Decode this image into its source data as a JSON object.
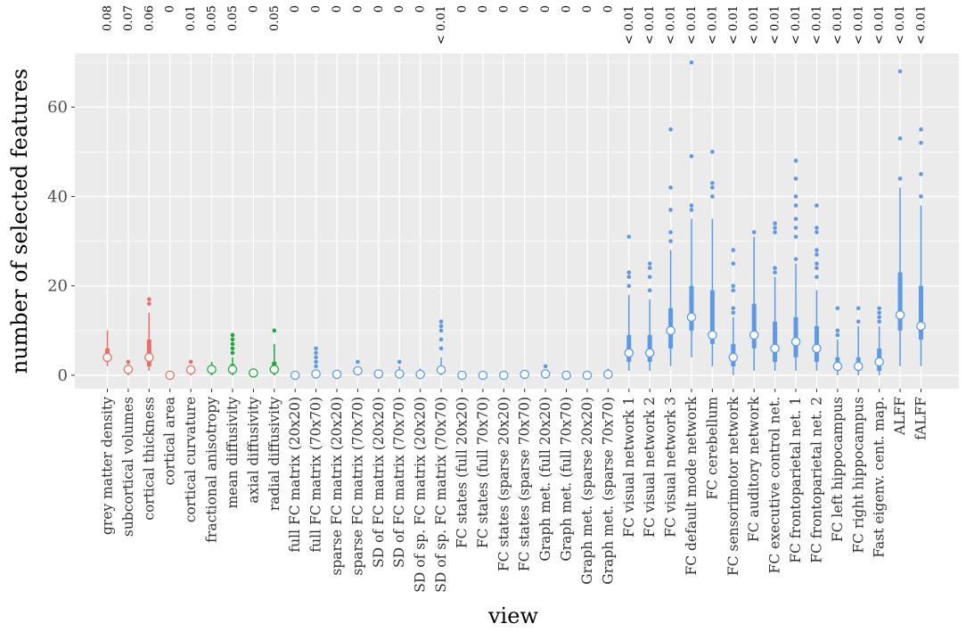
{
  "chart_data": {
    "type": "boxplot",
    "xlabel": "view",
    "ylabel": "number of selected features",
    "ylim": [
      -3,
      72
    ],
    "yticks": [
      0,
      20,
      40,
      60
    ],
    "grid": true,
    "legend": "none",
    "colors": {
      "structural": "#E8706A",
      "diffusion": "#1BAA3A",
      "functional": "#5C9AE8",
      "panel_bg": "#EBEBEB",
      "grid": "#FFFFFF"
    },
    "categories": [
      {
        "label": "grey matter density",
        "p": "0.08",
        "group": "structural",
        "median": 4,
        "q1": 3,
        "q3": 6,
        "wlo": 2,
        "whi": 10,
        "out": []
      },
      {
        "label": "subcortical volumes",
        "p": "0.07",
        "group": "structural",
        "median": 1.3,
        "q1": 1,
        "q3": 2,
        "wlo": 0,
        "whi": 2.5,
        "out": [
          3
        ]
      },
      {
        "label": "cortical thickness",
        "p": "0.06",
        "group": "structural",
        "median": 4,
        "q1": 2,
        "q3": 8,
        "wlo": 1,
        "whi": 14,
        "out": [
          16,
          17
        ]
      },
      {
        "label": "cortical area",
        "p": "0",
        "group": "structural",
        "median": 0,
        "q1": 0,
        "q3": 0,
        "wlo": 0,
        "whi": 0,
        "out": []
      },
      {
        "label": "cortical curvature",
        "p": "0.01",
        "group": "structural",
        "median": 1.2,
        "q1": 1,
        "q3": 2,
        "wlo": 0,
        "whi": 2,
        "out": [
          3
        ]
      },
      {
        "label": "fractional anisotropy",
        "p": "0.05",
        "group": "diffusion",
        "median": 1.3,
        "q1": 1,
        "q3": 2,
        "wlo": 0,
        "whi": 3,
        "out": []
      },
      {
        "label": "mean diffusivity",
        "p": "0.05",
        "group": "diffusion",
        "median": 1.3,
        "q1": 1,
        "q3": 2.5,
        "wlo": 0,
        "whi": 4,
        "out": [
          5,
          6,
          7,
          8,
          9
        ]
      },
      {
        "label": "axial diffusivity",
        "p": "0",
        "group": "diffusion",
        "median": 0.5,
        "q1": 0,
        "q3": 1,
        "wlo": 0,
        "whi": 1.5,
        "out": []
      },
      {
        "label": "radial diffusivity",
        "p": "0.05",
        "group": "diffusion",
        "median": 1.3,
        "q1": 1,
        "q3": 3,
        "wlo": 0,
        "whi": 7,
        "out": [
          10
        ]
      },
      {
        "label": "full FC matrix (20x20)",
        "p": "0",
        "group": "functional",
        "median": 0,
        "q1": 0,
        "q3": 0,
        "wlo": 0,
        "whi": 0,
        "out": []
      },
      {
        "label": "full FC matrix (70x70)",
        "p": "0",
        "group": "functional",
        "median": 0.3,
        "q1": 0,
        "q3": 1,
        "wlo": 0,
        "whi": 1,
        "out": [
          2,
          3,
          4,
          5,
          6
        ]
      },
      {
        "label": "sparse FC matrix (20x20)",
        "p": "0",
        "group": "functional",
        "median": 0.2,
        "q1": 0,
        "q3": 0.5,
        "wlo": 0,
        "whi": 1,
        "out": []
      },
      {
        "label": "sparse FC matrix (70x70)",
        "p": "0",
        "group": "functional",
        "median": 1,
        "q1": 0.5,
        "q3": 1.5,
        "wlo": 0,
        "whi": 2,
        "out": [
          3
        ]
      },
      {
        "label": "SD of FC matrix (20x20)",
        "p": "0",
        "group": "functional",
        "median": 0.3,
        "q1": 0,
        "q3": 0.5,
        "wlo": 0,
        "whi": 1,
        "out": []
      },
      {
        "label": "SD of FC matrix (70x70)",
        "p": "0",
        "group": "functional",
        "median": 0.3,
        "q1": 0,
        "q3": 1,
        "wlo": 0,
        "whi": 2,
        "out": [
          3
        ]
      },
      {
        "label": "SD of sp. FC matrix (20x20)",
        "p": "0",
        "group": "functional",
        "median": 0.2,
        "q1": 0,
        "q3": 0.5,
        "wlo": 0,
        "whi": 1.5,
        "out": []
      },
      {
        "label": "SD of sp. FC matrix (70x70)",
        "p": "< 0.01",
        "group": "functional",
        "median": 1.2,
        "q1": 0.5,
        "q3": 2,
        "wlo": 0,
        "whi": 4,
        "out": [
          6,
          8,
          10,
          11,
          12
        ]
      },
      {
        "label": "FC states (full 20x20)",
        "p": "0",
        "group": "functional",
        "median": 0,
        "q1": 0,
        "q3": 0,
        "wlo": 0,
        "whi": 0,
        "out": []
      },
      {
        "label": "FC states (full 70x70)",
        "p": "0",
        "group": "functional",
        "median": 0,
        "q1": 0,
        "q3": 0,
        "wlo": 0,
        "whi": 0,
        "out": []
      },
      {
        "label": "FC states (sparse 20x20)",
        "p": "0",
        "group": "functional",
        "median": 0,
        "q1": 0,
        "q3": 0,
        "wlo": 0,
        "whi": 0,
        "out": []
      },
      {
        "label": "FC states (sparse 70x70)",
        "p": "0",
        "group": "functional",
        "median": 0.2,
        "q1": 0,
        "q3": 0.5,
        "wlo": 0,
        "whi": 1,
        "out": []
      },
      {
        "label": "Graph met. (full 20x20)",
        "p": "0",
        "group": "functional",
        "median": 0.3,
        "q1": 0,
        "q3": 0.5,
        "wlo": 0,
        "whi": 1,
        "out": [
          2
        ]
      },
      {
        "label": "Graph met. (full 70x70)",
        "p": "0",
        "group": "functional",
        "median": 0,
        "q1": 0,
        "q3": 0,
        "wlo": 0,
        "whi": 0,
        "out": []
      },
      {
        "label": "Graph met. (sparse 20x20)",
        "p": "0",
        "group": "functional",
        "median": 0,
        "q1": 0,
        "q3": 0,
        "wlo": 0,
        "whi": 0,
        "out": []
      },
      {
        "label": "Graph met. (sparse 70x70)",
        "p": "0",
        "group": "functional",
        "median": 0.2,
        "q1": 0,
        "q3": 0.5,
        "wlo": 0,
        "whi": 1.5,
        "out": []
      },
      {
        "label": "FC visual network 1",
        "p": "< 0.01",
        "group": "functional",
        "median": 5,
        "q1": 3,
        "q3": 9,
        "wlo": 1,
        "whi": 18,
        "out": [
          20,
          22,
          23,
          31
        ]
      },
      {
        "label": "FC visual network 2",
        "p": "< 0.01",
        "group": "functional",
        "median": 5,
        "q1": 3,
        "q3": 9,
        "wlo": 1,
        "whi": 17,
        "out": [
          19,
          22,
          24,
          25
        ]
      },
      {
        "label": "FC visual network 3",
        "p": "< 0.01",
        "group": "functional",
        "median": 10,
        "q1": 6,
        "q3": 15,
        "wlo": 2,
        "whi": 28,
        "out": [
          30,
          32,
          37,
          42,
          55
        ]
      },
      {
        "label": "FC default mode network",
        "p": "< 0.01",
        "group": "functional",
        "median": 13,
        "q1": 10,
        "q3": 20,
        "wlo": 4,
        "whi": 35,
        "out": [
          37,
          38,
          49,
          70
        ]
      },
      {
        "label": "FC cerebellum",
        "p": "< 0.01",
        "group": "functional",
        "median": 9,
        "q1": 7,
        "q3": 19,
        "wlo": 2,
        "whi": 35,
        "out": [
          40,
          42,
          43,
          50
        ]
      },
      {
        "label": "FC sensorimotor network",
        "p": "< 0.01",
        "group": "functional",
        "median": 4,
        "q1": 2,
        "q3": 7,
        "wlo": 0,
        "whi": 13,
        "out": [
          14,
          15,
          19,
          20,
          25,
          28
        ]
      },
      {
        "label": "FC auditory network",
        "p": "< 0.01",
        "group": "functional",
        "median": 9,
        "q1": 6,
        "q3": 16,
        "wlo": 1,
        "whi": 31,
        "out": [
          32
        ]
      },
      {
        "label": "FC executive control net.",
        "p": "< 0.01",
        "group": "functional",
        "median": 6,
        "q1": 3,
        "q3": 12,
        "wlo": 1,
        "whi": 22,
        "out": [
          23,
          24,
          32,
          33,
          34
        ]
      },
      {
        "label": "FC frontoparietal net. 1",
        "p": "< 0.01",
        "group": "functional",
        "median": 7.5,
        "q1": 4,
        "q3": 13,
        "wlo": 1,
        "whi": 25,
        "out": [
          26,
          31,
          33,
          35,
          38,
          40,
          44,
          48
        ]
      },
      {
        "label": "FC frontoparietal net. 2",
        "p": "< 0.01",
        "group": "functional",
        "median": 6,
        "q1": 3,
        "q3": 11,
        "wlo": 1,
        "whi": 19,
        "out": [
          22,
          24,
          25,
          27,
          28,
          32,
          33,
          38
        ]
      },
      {
        "label": "FC left hippocampus",
        "p": "< 0.01",
        "group": "functional",
        "median": 2,
        "q1": 1,
        "q3": 4,
        "wlo": 0,
        "whi": 8,
        "out": [
          9,
          10,
          15
        ]
      },
      {
        "label": "FC right hippocampus",
        "p": "< 0.01",
        "group": "functional",
        "median": 2,
        "q1": 1,
        "q3": 4,
        "wlo": 0,
        "whi": 11,
        "out": [
          12,
          15
        ]
      },
      {
        "label": "Fast eigenv. cent. map.",
        "p": "< 0.01",
        "group": "functional",
        "median": 3,
        "q1": 1,
        "q3": 6,
        "wlo": 0,
        "whi": 11,
        "out": [
          12,
          13,
          14,
          15
        ]
      },
      {
        "label": "ALFF",
        "p": "< 0.01",
        "group": "functional",
        "median": 13.5,
        "q1": 10,
        "q3": 23,
        "wlo": 2,
        "whi": 42,
        "out": [
          44,
          53,
          68
        ]
      },
      {
        "label": "fALFF",
        "p": "< 0.01",
        "group": "functional",
        "median": 11,
        "q1": 8,
        "q3": 20,
        "wlo": 2,
        "whi": 38,
        "out": [
          40,
          45,
          52,
          55
        ]
      }
    ]
  }
}
